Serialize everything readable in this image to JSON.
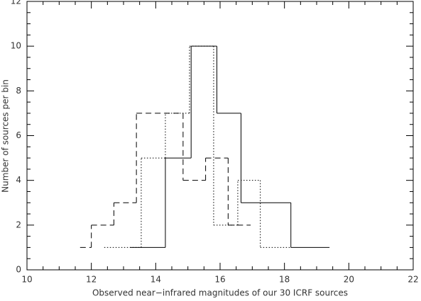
{
  "chart_data": {
    "type": "histogram",
    "xlabel": "Observed near−infrared magnitudes of our 30 ICRF sources",
    "ylabel": "Number of sources per bin",
    "xlim": [
      10,
      22
    ],
    "xticks": [
      10,
      12,
      14,
      16,
      18,
      20,
      22
    ],
    "ylim": [
      0,
      12
    ],
    "yticks": [
      0,
      2,
      4,
      6,
      8,
      10,
      12
    ],
    "series": [
      {
        "color": "#000000",
        "dash": "solid",
        "bins": [
          13.2,
          14.3,
          15.1,
          15.9,
          16.65,
          18.2,
          19.4
        ],
        "values": [
          1,
          5,
          10,
          7,
          3,
          1
        ]
      },
      {
        "color": "#000000",
        "dash": "dashed",
        "bins": [
          11.65,
          12.0,
          12.7,
          13.4,
          14.85,
          15.55,
          16.25,
          16.95
        ],
        "values": [
          1,
          2,
          3,
          7,
          4,
          5,
          2
        ]
      },
      {
        "color": "#000000",
        "dash": "dotted",
        "bins": [
          12.4,
          13.55,
          14.3,
          15.05,
          15.8,
          16.55,
          17.25,
          18.2
        ],
        "values": [
          1,
          5,
          7,
          10,
          2,
          4,
          1
        ]
      }
    ]
  }
}
